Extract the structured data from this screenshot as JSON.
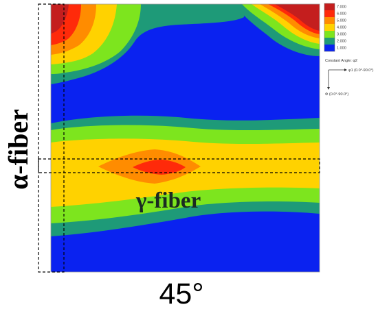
{
  "chart_data": {
    "type": "heatmap",
    "title": "",
    "section_angle": "45°",
    "constant_angle_note": "Constant Angle: φ2",
    "axes": {
      "phi1": {
        "label": "φ1 (0.0°-90.0°)",
        "range": [
          0,
          90
        ],
        "direction": "right"
      },
      "Phi": {
        "label": "Φ (0.0°-90.0°)",
        "range": [
          0,
          90
        ],
        "direction": "down"
      }
    },
    "legend": {
      "placement": "top-right",
      "levels": [
        {
          "value": 7.0,
          "label": "7.000",
          "color": "#c41e1e"
        },
        {
          "value": 6.0,
          "label": "6.000",
          "color": "#ff2a0a"
        },
        {
          "value": 5.0,
          "label": "5.000",
          "color": "#ff8c00"
        },
        {
          "value": 4.0,
          "label": "4.000",
          "color": "#ffd200"
        },
        {
          "value": 3.0,
          "label": "3.000",
          "color": "#7de51e"
        },
        {
          "value": 2.0,
          "label": "2.000",
          "color": "#1e9a78"
        },
        {
          "value": 1.0,
          "label": "1.000",
          "color": "#0a22f0"
        }
      ]
    },
    "fibers": {
      "alpha": {
        "label": "α-fiber",
        "phi1": [
          0,
          5
        ],
        "Phi": [
          0,
          90
        ]
      },
      "gamma": {
        "label": "γ-fiber",
        "phi1": [
          0,
          90
        ],
        "Phi": [
          50,
          55
        ]
      }
    },
    "peaks": [
      {
        "name": "alpha-fiber-top-left",
        "phi1": 5,
        "Phi": 3,
        "max_level": 7.0
      },
      {
        "name": "top-right",
        "phi1": 85,
        "Phi": 3,
        "max_level": 7.0
      },
      {
        "name": "gamma-fiber-center",
        "phi1": 35,
        "Phi": 55,
        "max_level": 6.0
      }
    ]
  },
  "colors": {
    "background": "#0a22f0",
    "frame": "#9a9a9a",
    "dash": "#000000"
  }
}
